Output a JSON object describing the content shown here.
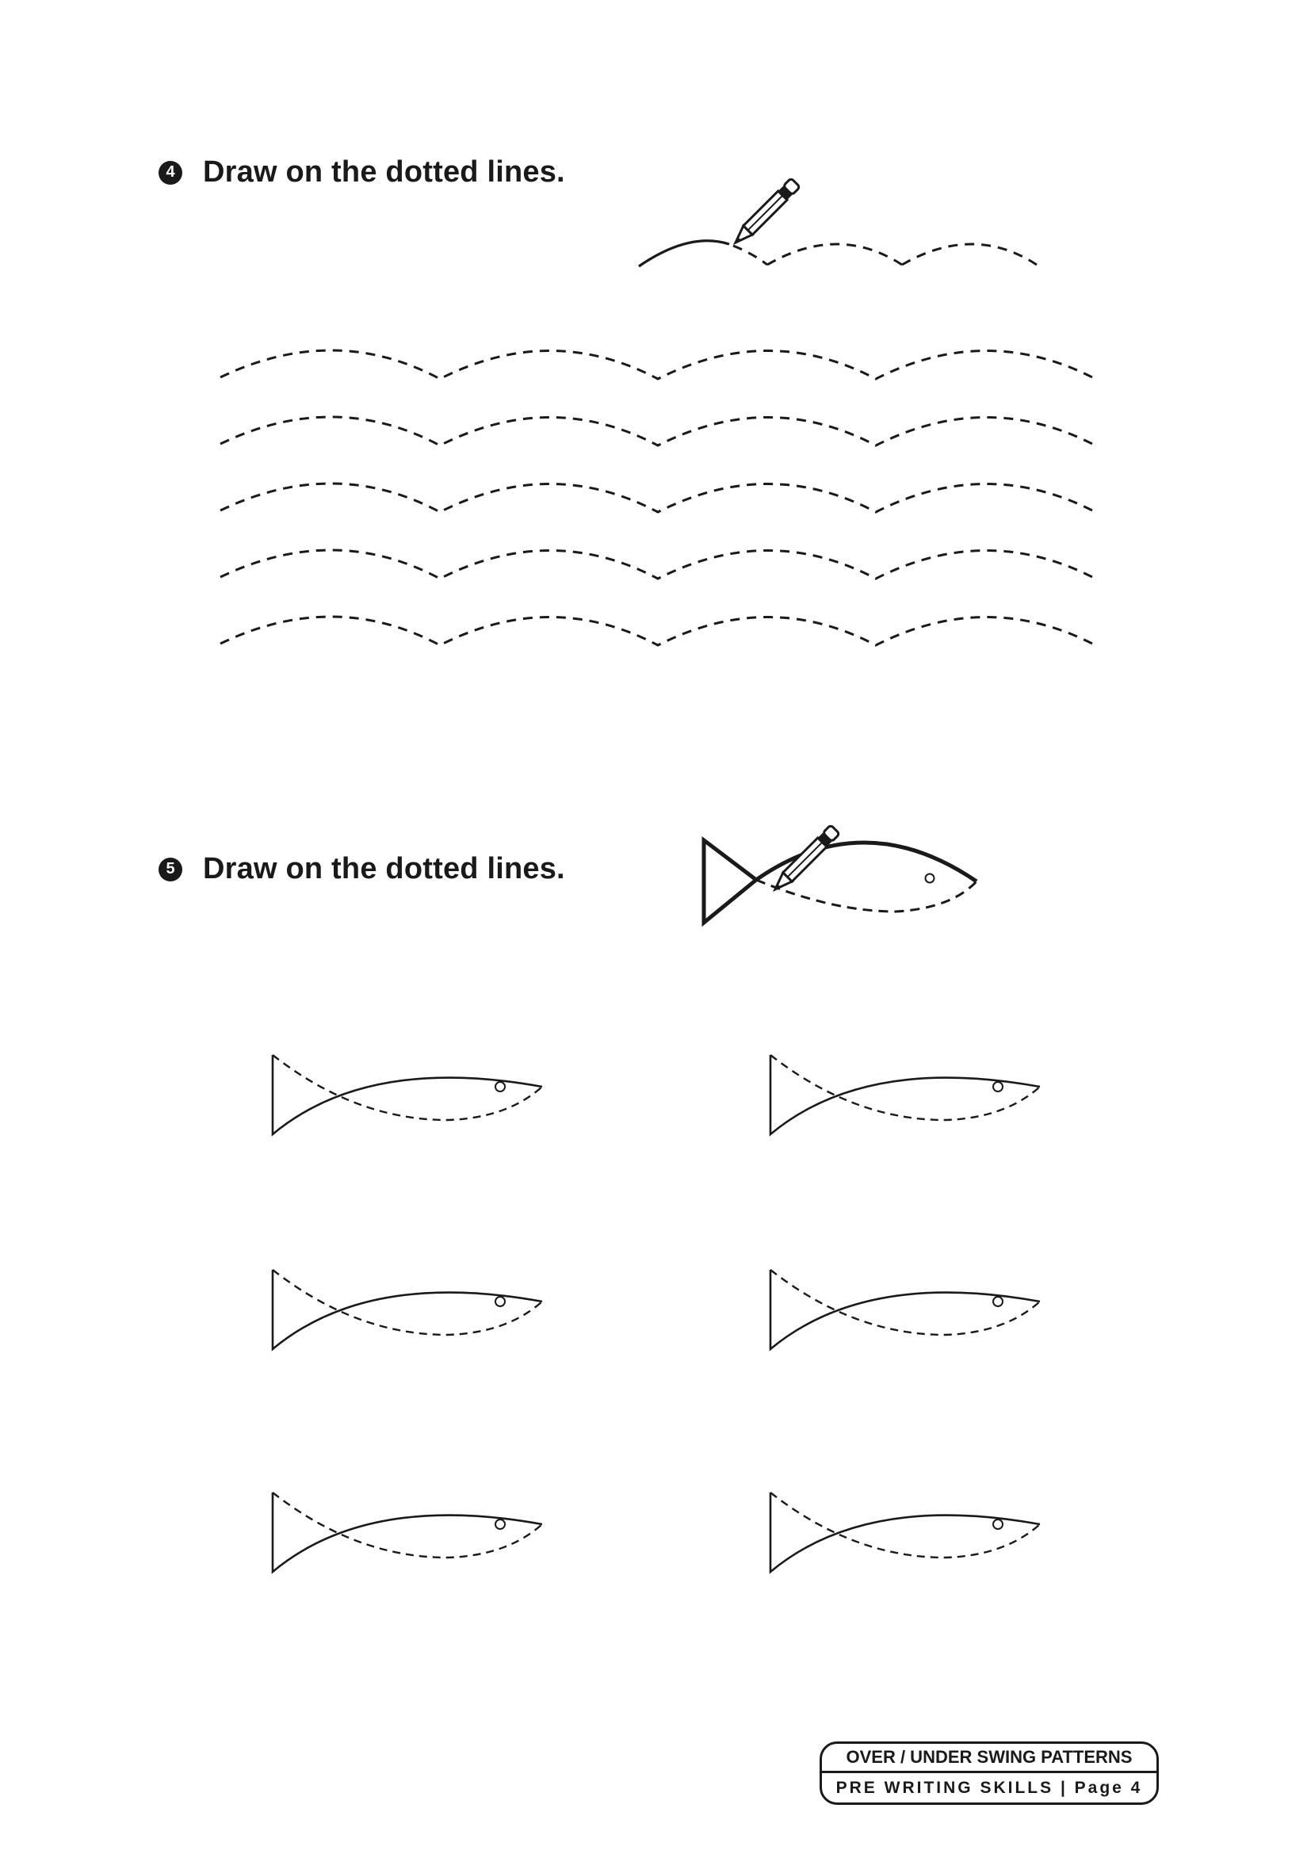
{
  "exercise4": {
    "number": "4",
    "instruction": "Draw on the dotted lines."
  },
  "exercise5": {
    "number": "5",
    "instruction": "Draw on the dotted lines."
  },
  "footer": {
    "title": "OVER / UNDER SWING PATTERNS",
    "subtitle": "PRE WRITING SKILLS | Page 4"
  },
  "icons": [
    "pencil-icon",
    "fish-icon"
  ],
  "colors": {
    "ink": "#1a1a1a",
    "background": "#ffffff"
  }
}
